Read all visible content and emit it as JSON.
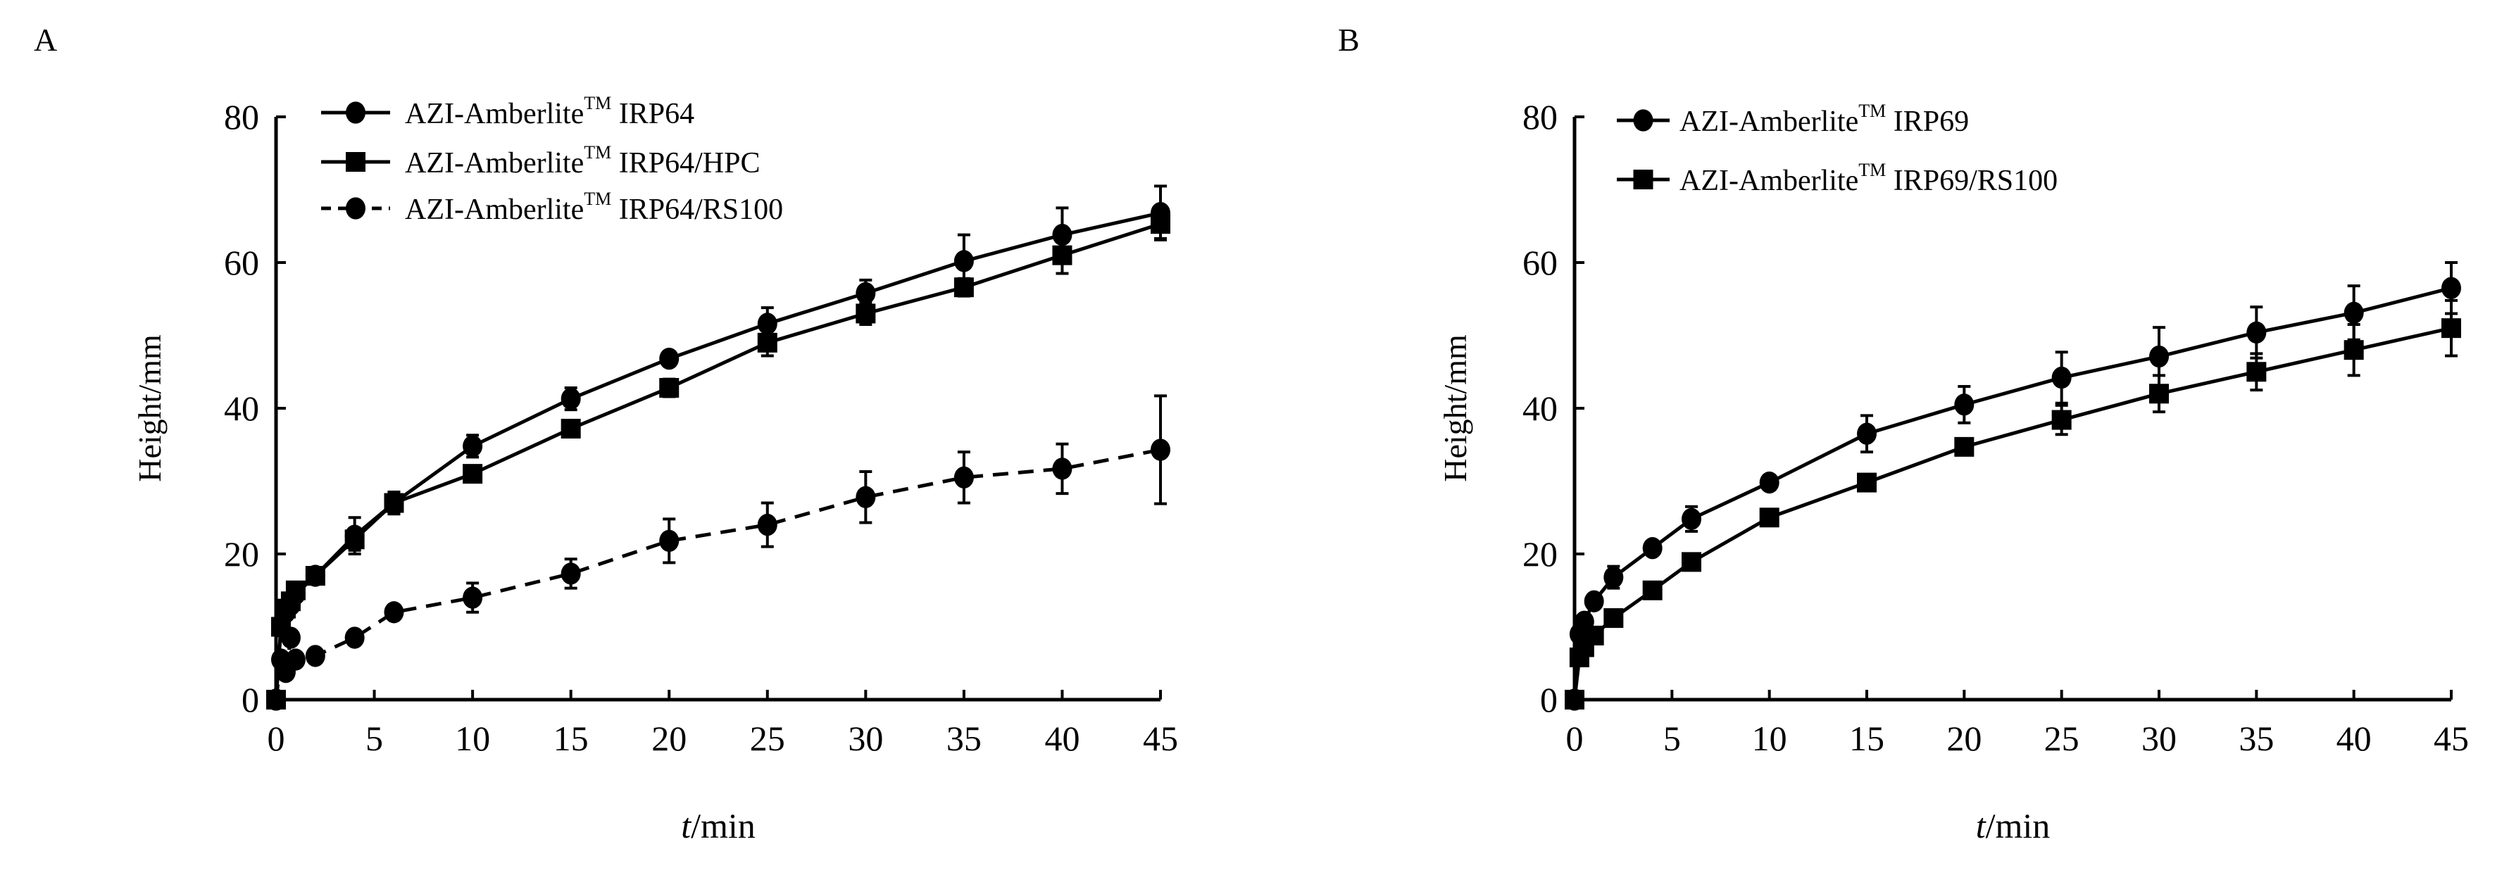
{
  "chart_data": [
    {
      "panel_label": "A",
      "type": "line",
      "xlabel_italic": "t",
      "xlabel_rest": "/min",
      "ylabel": "Height/mm",
      "xlim": [
        0,
        45
      ],
      "ylim": [
        0,
        80
      ],
      "xticks": [
        0,
        5,
        10,
        15,
        20,
        25,
        30,
        35,
        40,
        45
      ],
      "yticks": [
        0,
        20,
        40,
        60,
        80
      ],
      "grid": false,
      "legend_position": "top-left",
      "series": [
        {
          "name_prefix": "AZI-Amberlite",
          "name_sup": "TM",
          "name_suffix": " IRP64",
          "marker": "circle",
          "dash": false,
          "x": [
            0,
            0.25,
            0.5,
            0.75,
            1,
            2,
            4,
            6,
            10,
            15,
            20,
            25,
            30,
            35,
            40,
            45
          ],
          "y": [
            0,
            10,
            12,
            13,
            14.5,
            17,
            22.5,
            27,
            34.8,
            41.3,
            46.8,
            51.6,
            55.8,
            60.2,
            63.8,
            66.8
          ],
          "err": [
            0,
            0.5,
            0.5,
            0.5,
            0.5,
            1,
            2.5,
            1.5,
            1.5,
            1.5,
            1,
            2.2,
            1.8,
            3.6,
            3.7,
            3.7
          ]
        },
        {
          "name_prefix": "AZI-Amberlite",
          "name_sup": "TM",
          "name_suffix": " IRP64/HPC",
          "marker": "square",
          "dash": false,
          "x": [
            0,
            0.25,
            0.5,
            0.75,
            1,
            2,
            4,
            6,
            10,
            15,
            20,
            25,
            30,
            35,
            40,
            45
          ],
          "y": [
            0,
            10,
            12.5,
            13.5,
            15,
            17,
            22,
            27,
            31,
            37.2,
            42.8,
            49,
            53,
            56.6,
            61,
            65.3
          ],
          "err": [
            0,
            0.5,
            0.5,
            0.5,
            0.5,
            1,
            1.5,
            1.5,
            0.8,
            0.8,
            1.2,
            1.8,
            1.5,
            1.2,
            2.5,
            2
          ]
        },
        {
          "name_prefix": "AZI-Amberlite",
          "name_sup": "TM",
          "name_suffix": " IRP64/RS100",
          "marker": "circle",
          "dash": true,
          "x": [
            0,
            0.25,
            0.5,
            0.75,
            1,
            2,
            4,
            6,
            10,
            15,
            20,
            25,
            30,
            35,
            40,
            45
          ],
          "y": [
            0,
            5.5,
            3.8,
            8.5,
            5.5,
            6,
            8.5,
            12,
            14,
            17.3,
            21.8,
            24,
            27.8,
            30.5,
            31.7,
            34.3
          ],
          "err": [
            0,
            0.5,
            0.5,
            0.5,
            0.5,
            0.5,
            0.8,
            0.8,
            2,
            2,
            3,
            3,
            3.5,
            3.5,
            3.4,
            7.4
          ]
        }
      ]
    },
    {
      "panel_label": "B",
      "type": "line",
      "xlabel_italic": "t",
      "xlabel_rest": "/min",
      "ylabel": "Height/mm",
      "xlim": [
        0,
        45
      ],
      "ylim": [
        0,
        80
      ],
      "xticks": [
        0,
        5,
        10,
        15,
        20,
        25,
        30,
        35,
        40,
        45
      ],
      "yticks": [
        0,
        20,
        40,
        60,
        80
      ],
      "grid": false,
      "legend_position": "top-left",
      "series": [
        {
          "name_prefix": "AZI-Amberlite",
          "name_sup": "TM",
          "name_suffix": " IRP69",
          "marker": "circle",
          "dash": false,
          "x": [
            0,
            0.25,
            0.5,
            1,
            2,
            4,
            6,
            10,
            15,
            20,
            25,
            30,
            35,
            40,
            45
          ],
          "y": [
            0,
            9,
            10.7,
            13.5,
            16.8,
            20.8,
            24.8,
            29.8,
            36.5,
            40.5,
            44.2,
            47.1,
            50.4,
            53.1,
            56.5
          ],
          "err": [
            0,
            0.5,
            0.5,
            1,
            1.5,
            0.5,
            1.7,
            1,
            2.5,
            2.5,
            3.5,
            4,
            3.5,
            3.7,
            3.5
          ]
        },
        {
          "name_prefix": "AZI-Amberlite",
          "name_sup": "TM",
          "name_suffix": " IRP69/RS100",
          "marker": "square",
          "dash": false,
          "x": [
            0,
            0.25,
            0.5,
            1,
            2,
            4,
            6,
            10,
            15,
            20,
            25,
            30,
            35,
            40,
            45
          ],
          "y": [
            0,
            5.8,
            7.2,
            8.8,
            11.2,
            15,
            18.9,
            25,
            29.8,
            34.7,
            38.4,
            42,
            45,
            48,
            51
          ],
          "err": [
            0,
            0.5,
            0.5,
            0.5,
            0.5,
            0.5,
            0.5,
            0.5,
            1,
            1,
            2,
            2.5,
            2.5,
            3.5,
            3.8
          ]
        }
      ]
    }
  ]
}
